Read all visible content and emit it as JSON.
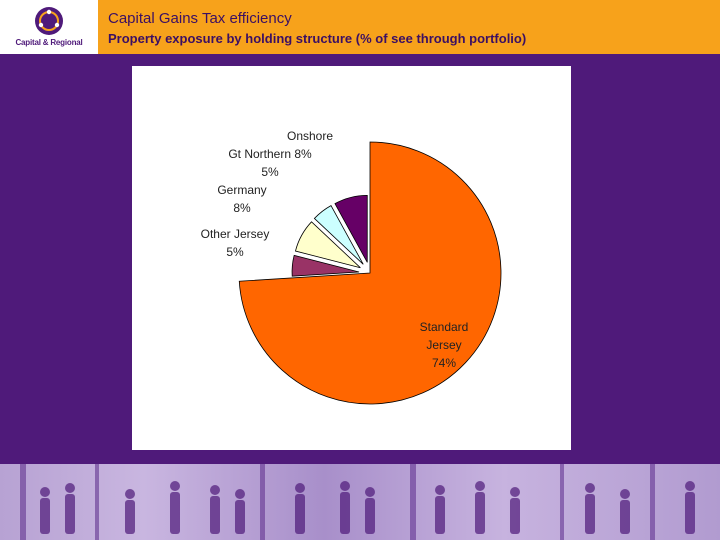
{
  "header": {
    "logo_text": "Capital & Regional",
    "title": "Capital Gains Tax efficiency",
    "subtitle": "Property exposure by holding structure (% of see through portfolio)"
  },
  "colors": {
    "header_bg": "#f7a21b",
    "slide_bg": "#4f1a7a"
  },
  "chart_data": {
    "type": "pie",
    "title": "",
    "slices": [
      {
        "label_lines": [
          "Standard",
          "Jersey",
          "74%"
        ],
        "value": 74,
        "color": "#ff6600",
        "exploded": false
      },
      {
        "label_lines": [
          "Other Jersey",
          "5%"
        ],
        "value": 5,
        "color": "#993366",
        "exploded": true
      },
      {
        "label_lines": [
          "Germany",
          "8%"
        ],
        "value": 8,
        "color": "#ffffcc",
        "exploded": true
      },
      {
        "label_lines": [
          "Gt Northern 8%",
          "5%"
        ],
        "value": 5,
        "color": "#ccffff",
        "exploded": true
      },
      {
        "label_lines": [
          "Onshore"
        ],
        "value": 8,
        "color": "#660066",
        "exploded": true
      }
    ],
    "start_angle_deg": 0,
    "direction": "clockwise"
  }
}
